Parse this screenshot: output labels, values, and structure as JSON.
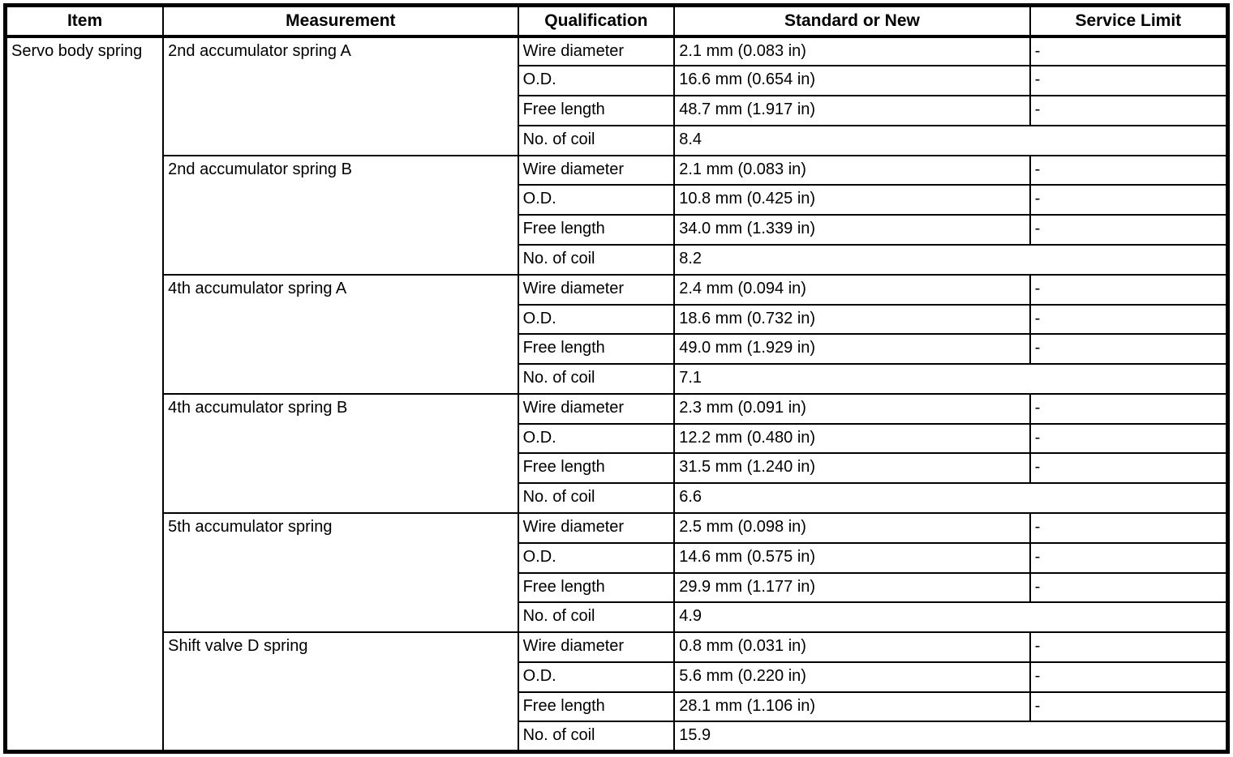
{
  "table": {
    "headers": [
      "Item",
      "Measurement",
      "Qualification",
      "Standard or New",
      "Service Limit"
    ],
    "item": "Servo body spring",
    "groups": [
      {
        "measurement": "2nd accumulator spring A",
        "rows": [
          {
            "qualification": "Wire diameter",
            "standard": "2.1 mm (0.083 in)",
            "service_limit": "-"
          },
          {
            "qualification": "O.D.",
            "standard": "16.6 mm (0.654 in)",
            "service_limit": "-"
          },
          {
            "qualification": "Free length",
            "standard": "48.7 mm (1.917 in)",
            "service_limit": "-"
          },
          {
            "qualification": "No. of coil",
            "standard": "8.4",
            "service_limit": null
          }
        ]
      },
      {
        "measurement": "2nd accumulator spring B",
        "rows": [
          {
            "qualification": "Wire diameter",
            "standard": "2.1 mm (0.083 in)",
            "service_limit": "-"
          },
          {
            "qualification": "O.D.",
            "standard": "10.8 mm (0.425 in)",
            "service_limit": "-"
          },
          {
            "qualification": "Free length",
            "standard": "34.0 mm (1.339 in)",
            "service_limit": "-"
          },
          {
            "qualification": "No. of coil",
            "standard": "8.2",
            "service_limit": null
          }
        ]
      },
      {
        "measurement": "4th accumulator spring A",
        "rows": [
          {
            "qualification": "Wire diameter",
            "standard": "2.4 mm (0.094 in)",
            "service_limit": "-"
          },
          {
            "qualification": "O.D.",
            "standard": "18.6 mm (0.732 in)",
            "service_limit": "-"
          },
          {
            "qualification": "Free length",
            "standard": "49.0 mm (1.929 in)",
            "service_limit": "-"
          },
          {
            "qualification": "No. of coil",
            "standard": "7.1",
            "service_limit": null
          }
        ]
      },
      {
        "measurement": "4th accumulator spring B",
        "rows": [
          {
            "qualification": "Wire diameter",
            "standard": "2.3 mm (0.091 in)",
            "service_limit": "-"
          },
          {
            "qualification": "O.D.",
            "standard": "12.2 mm (0.480 in)",
            "service_limit": "-"
          },
          {
            "qualification": "Free length",
            "standard": "31.5 mm (1.240 in)",
            "service_limit": "-"
          },
          {
            "qualification": "No. of coil",
            "standard": "6.6",
            "service_limit": null
          }
        ]
      },
      {
        "measurement": "5th accumulator spring",
        "rows": [
          {
            "qualification": "Wire diameter",
            "standard": "2.5 mm (0.098 in)",
            "service_limit": "-"
          },
          {
            "qualification": "O.D.",
            "standard": "14.6 mm (0.575 in)",
            "service_limit": "-"
          },
          {
            "qualification": "Free length",
            "standard": "29.9 mm (1.177 in)",
            "service_limit": "-"
          },
          {
            "qualification": "No. of coil",
            "standard": "4.9",
            "service_limit": null
          }
        ]
      },
      {
        "measurement": "Shift valve D spring",
        "rows": [
          {
            "qualification": "Wire diameter",
            "standard": "0.8 mm (0.031 in)",
            "service_limit": "-"
          },
          {
            "qualification": "O.D.",
            "standard": "5.6 mm (0.220 in)",
            "service_limit": "-"
          },
          {
            "qualification": "Free length",
            "standard": "28.1 mm (1.106 in)",
            "service_limit": "-"
          },
          {
            "qualification": "No. of coil",
            "standard": "15.9",
            "service_limit": null
          }
        ]
      }
    ]
  }
}
